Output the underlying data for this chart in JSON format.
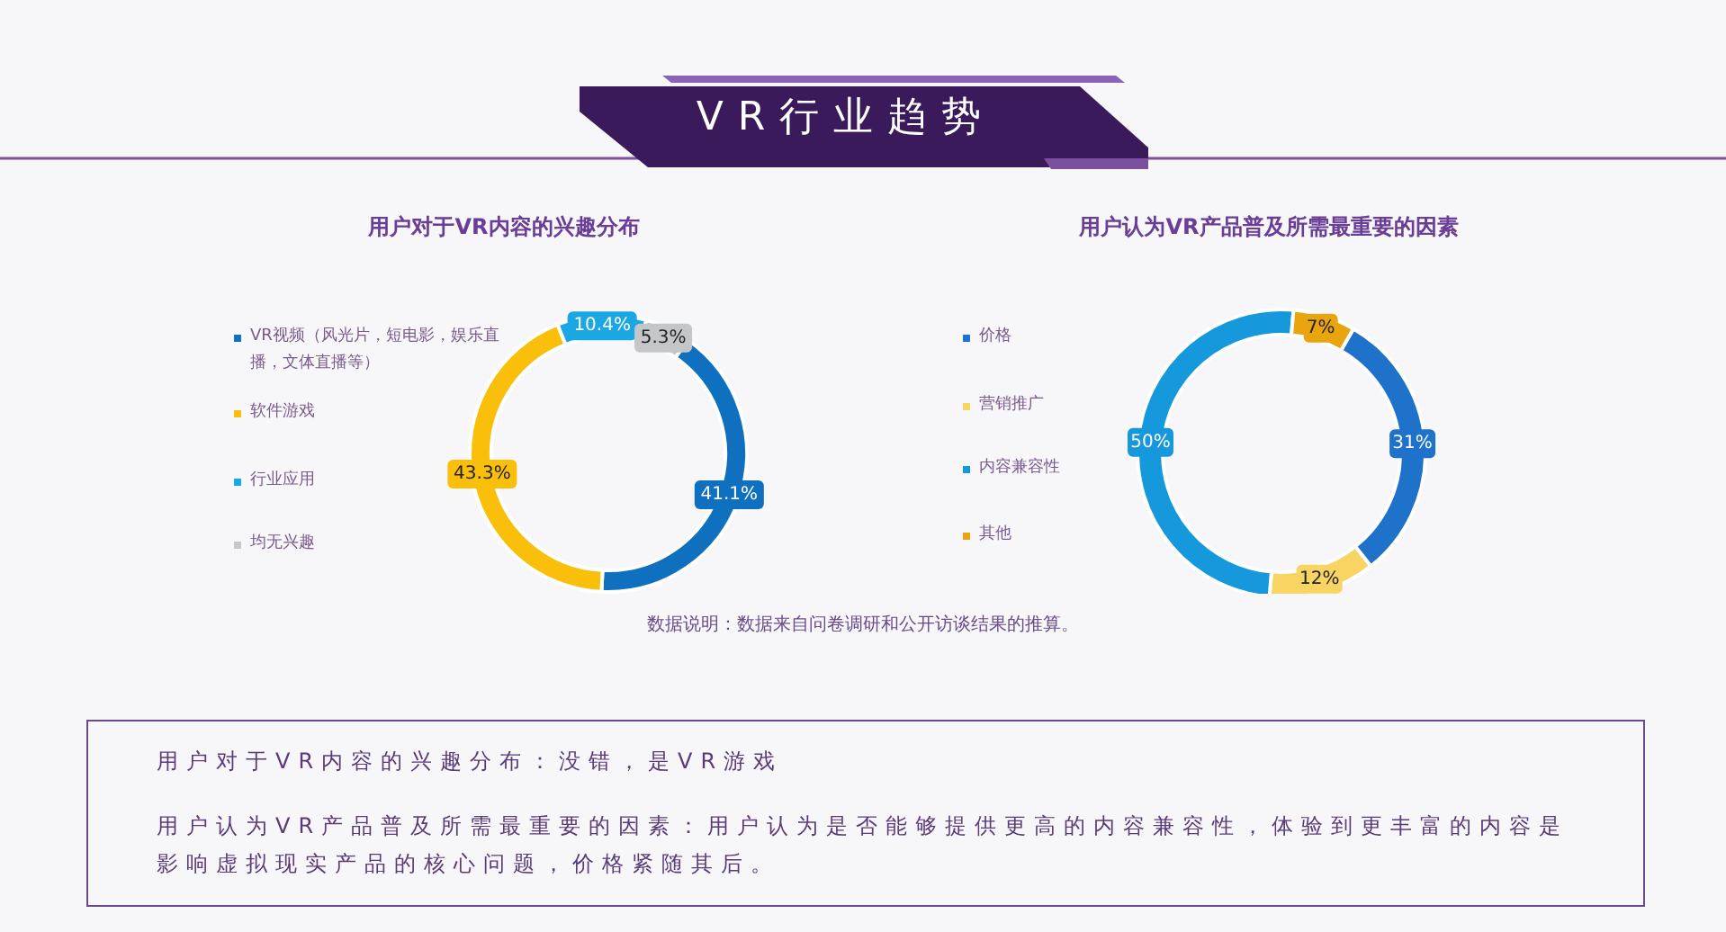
{
  "chart_data": [
    {
      "type": "other",
      "title": "VR行业趋势"
    },
    {
      "type": "donut",
      "title": "用户对于VR内容的兴趣分布",
      "categories": [
        "VR视频（风光片，短电影，娱乐直播，文体直播等）",
        "软件游戏",
        "行业应用",
        "均无兴趣"
      ],
      "values": [
        41.1,
        43.3,
        10.4,
        5.3
      ],
      "colors": [
        "#0e70bf",
        "#f9bf0a",
        "#1ba7e2",
        "#c4c6c8"
      ],
      "value_labels": [
        "41.1%",
        "43.3%",
        "10.4%",
        "5.3%"
      ],
      "legend": "left"
    },
    {
      "type": "donut",
      "title": "用户认为VR产品普及所需最重要的因素",
      "categories": [
        "价格",
        "营销推广",
        "内容兼容性",
        "其他"
      ],
      "values": [
        31,
        12,
        50,
        7
      ],
      "colors": [
        "#1f72c9",
        "#f8d463",
        "#1598dc",
        "#e8a510"
      ],
      "value_labels": [
        "31%",
        "12%",
        "50%",
        "7%"
      ],
      "legend": "left"
    },
    {
      "type": "other",
      "annotations": [
        "数据说明：数据来自问卷调研和公开访谈结果的推算。",
        "用户对于VR内容的兴趣分布：没错，是VR游戏",
        "用户认为VR产品普及所需最重要的因素：用户认为是否能够提供更高的内容兼容性，体验到更丰富的内容是影响虚拟现实产品的核心问题，价格紧随其后。"
      ]
    }
  ]
}
